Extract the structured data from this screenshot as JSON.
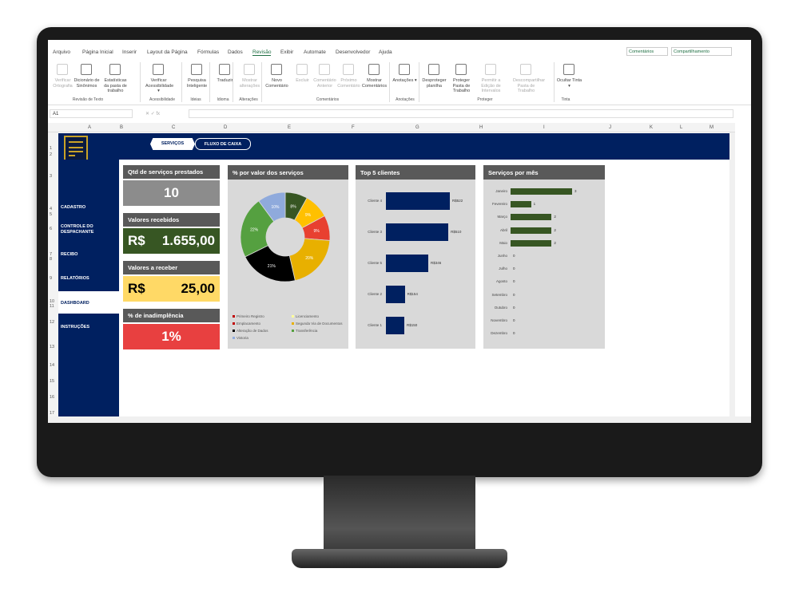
{
  "menu": {
    "tabs": [
      "Arquivo",
      "Página Inicial",
      "Inserir",
      "Layout da Página",
      "Fórmulas",
      "Dados",
      "Revisão",
      "Exibir",
      "Automate",
      "Desenvolvedor",
      "Ajuda"
    ],
    "active": "Revisão",
    "comments": "Comentários",
    "share": "Compartilhamento"
  },
  "ribbon": {
    "buttons": [
      {
        "label": "Verificar Ortografia",
        "disabled": true
      },
      {
        "label": "Dicionário de Sinônimos"
      },
      {
        "label": "Estatísticas da pasta de trabalho"
      },
      {
        "label": "Verificar Acessibilidade ▾"
      },
      {
        "label": "Pesquisa Inteligente"
      },
      {
        "label": "Traduzir"
      },
      {
        "label": "Mostrar alterações",
        "disabled": true
      },
      {
        "label": "Novo Comentário"
      },
      {
        "label": "Excluir",
        "disabled": true
      },
      {
        "label": "Comentário Anterior",
        "disabled": true
      },
      {
        "label": "Próximo Comentário",
        "disabled": true
      },
      {
        "label": "Mostrar Comentários"
      },
      {
        "label": "Anotações ▾"
      },
      {
        "label": "Desproteger planilha"
      },
      {
        "label": "Proteger Pasta de Trabalho"
      },
      {
        "label": "Permitir a Edição de Intervalos",
        "disabled": true
      },
      {
        "label": "Descompartilhar Pasta de Trabalho",
        "disabled": true
      },
      {
        "label": "Ocultar Tinta ▾"
      }
    ],
    "groups": [
      "Revisão de Texto",
      "Acessibilidade",
      "Ideias",
      "Idioma",
      "Alterações",
      "Comentários",
      "Anotações",
      "Proteger",
      "Tinta"
    ]
  },
  "formula_bar": {
    "cell": "A1",
    "value": ""
  },
  "columns": [
    "A",
    "B",
    "C",
    "D",
    "E",
    "F",
    "G",
    "H",
    "I",
    "J",
    "K",
    "L",
    "M"
  ],
  "rows": [
    "1",
    "2",
    "3",
    "4",
    "5",
    "6",
    "7",
    "8",
    "9",
    "10",
    "11",
    "12",
    "13",
    "14",
    "15",
    "16",
    "17",
    "18"
  ],
  "banner_tabs": [
    "SERVIÇOS",
    "FLUXO DE CAIXA"
  ],
  "sidebar": {
    "items": [
      "CADASTRO",
      "CONTROLE DO DESPACHANTE",
      "RECIBO",
      "RELATÓRIOS",
      "DASHBOARD",
      "INSTRUÇÕES"
    ],
    "active": "DASHBOARD"
  },
  "cards": [
    {
      "title": "Qtd de serviços prestados",
      "prefix": "",
      "value": "10",
      "bg": "#8c8c8c",
      "fg": "#ffffff"
    },
    {
      "title": "Valores recebidos",
      "prefix": "R$",
      "value": "1.655,00",
      "bg": "#375623",
      "fg": "#ffffff"
    },
    {
      "title": "Valores a receber",
      "prefix": "R$",
      "value": "25,00",
      "bg": "#ffd966",
      "fg": "#000000"
    },
    {
      "title": "% de inadimplência",
      "prefix": "",
      "value": "1%",
      "bg": "#e84040",
      "fg": "#ffffff"
    }
  ],
  "chart_data": [
    {
      "type": "pie",
      "title": "% por valor dos serviços",
      "donut": true,
      "slices": [
        {
          "label": "8%",
          "value": 8,
          "color": "#375623"
        },
        {
          "label": "9%",
          "value": 9,
          "color": "#ffc000"
        },
        {
          "label": "9%",
          "value": 9,
          "color": "#e84030"
        },
        {
          "label": "20%",
          "value": 20,
          "color": "#e8b000"
        },
        {
          "label": "21%",
          "value": 21,
          "color": "#000000"
        },
        {
          "label": "22%",
          "value": 22,
          "color": "#55a040"
        },
        {
          "label": "10%",
          "value": 10,
          "color": "#8faadc"
        }
      ],
      "legend": [
        {
          "name": "Primeiro Registro",
          "color": "#c00000"
        },
        {
          "name": "Licenciamento",
          "color": "#ffff99"
        },
        {
          "name": "Emplacamento",
          "color": "#c00000"
        },
        {
          "name": "Segunda Via de Documentos",
          "color": "#e8b000"
        },
        {
          "name": "Alteração de Dados",
          "color": "#000000"
        },
        {
          "name": "Transferência",
          "color": "#55a040"
        },
        {
          "name": "Vistoria",
          "color": "#8faadc"
        }
      ],
      "legend_position": "bottom"
    },
    {
      "type": "bar",
      "orientation": "horizontal",
      "title": "Top 5 clientes",
      "categories": [
        "Cliente 4",
        "Cliente 3",
        "Cliente 5",
        "Cliente 2",
        "Cliente 1"
      ],
      "values": [
        522,
        510,
        346,
        154,
        150
      ],
      "labels": [
        "R$522",
        "R$510",
        "R$346",
        "R$154",
        "R$150"
      ],
      "color": "#002060"
    },
    {
      "type": "bar",
      "orientation": "horizontal",
      "title": "Serviços por mês",
      "categories": [
        "Janeiro",
        "Fevereiro",
        "Março",
        "Abril",
        "Maio",
        "Junho",
        "Julho",
        "Agosto",
        "Setembro",
        "Outubro",
        "Novembro",
        "Dezembro"
      ],
      "values": [
        3,
        1,
        2,
        2,
        2,
        0,
        0,
        0,
        0,
        0,
        0,
        0
      ],
      "color": "#375623"
    }
  ]
}
